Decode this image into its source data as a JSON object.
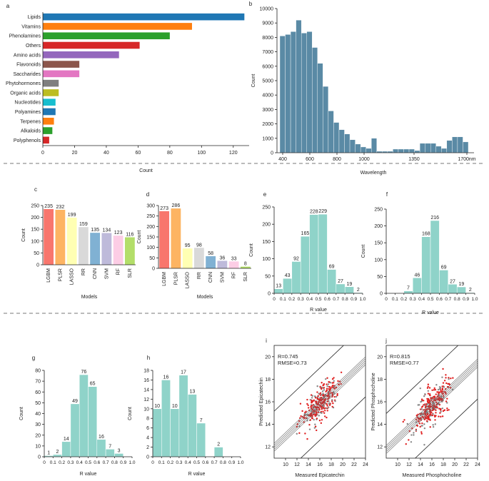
{
  "colors": {
    "hist": "#5a8aa5",
    "teal": "#8fd3c9",
    "red": "#e02020",
    "gray": "#888888",
    "axis": "#222222",
    "dash": "#777777"
  },
  "chart_data": [
    {
      "panel": "a",
      "type": "bar",
      "orientation": "horizontal",
      "categories": [
        "Lipids",
        "Vitamins",
        "Phenolamines",
        "Others",
        "Amino acids",
        "Flavonoids",
        "Saccharides",
        "Phytohormones",
        "Organic acids",
        "Nucleotides",
        "Polyamines",
        "Terpenes",
        "Alkaloids",
        "Polyphenols"
      ],
      "values": [
        127,
        94,
        80,
        61,
        48,
        23,
        23,
        10,
        10,
        8,
        8,
        7,
        6,
        4
      ],
      "colors": [
        "#1f77b4",
        "#ff7f0e",
        "#2ca02c",
        "#d62728",
        "#9467bd",
        "#8c564b",
        "#e377c2",
        "#7f7f7f",
        "#bcbd22",
        "#17becf",
        "#1f77b4",
        "#ff7f0e",
        "#2ca02c",
        "#d62728"
      ],
      "xlabel": "Count",
      "ylabel": "",
      "xlim": [
        0,
        130
      ],
      "xticks": [
        0,
        20,
        40,
        60,
        80,
        100,
        120
      ]
    },
    {
      "panel": "b",
      "type": "bar",
      "subtype": "histogram",
      "values": [
        8100,
        8200,
        8400,
        9200,
        8300,
        8400,
        7300,
        6200,
        4600,
        2900,
        2100,
        1600,
        1300,
        900,
        600,
        400,
        300,
        1000,
        100,
        100,
        100,
        250,
        250,
        250,
        250,
        150,
        650,
        650,
        650,
        450,
        300,
        850,
        1100,
        1100,
        750
      ],
      "xlabel": "Wavelength",
      "ylabel": "Count",
      "ylim": [
        0,
        10000
      ],
      "yticks": [
        0,
        1000,
        2000,
        3000,
        4000,
        5000,
        6000,
        7000,
        8000,
        9000,
        10000
      ],
      "xtick_labels": [
        "400",
        "600",
        "800",
        "1000",
        "1350",
        "1700nm"
      ]
    },
    {
      "panel": "c",
      "type": "bar",
      "categories": [
        "LGBM",
        "PLSR",
        "LASSO",
        "RR",
        "CNN",
        "SVM",
        "RF",
        "SLR"
      ],
      "values": [
        235,
        232,
        199,
        159,
        135,
        134,
        123,
        116
      ],
      "colors": [
        "#f8766d",
        "#fdb462",
        "#ffffb3",
        "#d9d9d9",
        "#80b1d3",
        "#bebada",
        "#fccde5",
        "#b3de69"
      ],
      "xlabel": "Models",
      "ylabel": "Count",
      "ylim": [
        0,
        250
      ],
      "yticks": [
        0,
        50,
        100,
        150,
        200,
        250
      ]
    },
    {
      "panel": "d",
      "type": "bar",
      "categories": [
        "LGBM",
        "PLSR",
        "LASSO",
        "RR",
        "CNN",
        "SVM",
        "RF",
        "SLR"
      ],
      "values": [
        273,
        286,
        95,
        98,
        58,
        36,
        33,
        8
      ],
      "colors": [
        "#f8766d",
        "#fdb462",
        "#ffffb3",
        "#d9d9d9",
        "#80b1d3",
        "#bebada",
        "#fccde5",
        "#b3de69"
      ],
      "xlabel": "Models",
      "ylabel": "Count",
      "ylim": [
        0,
        300
      ],
      "yticks": [
        0,
        50,
        100,
        150,
        200,
        250,
        300
      ]
    },
    {
      "panel": "e",
      "type": "bar",
      "subtype": "histogram",
      "values": [
        13,
        43,
        92,
        165,
        228,
        229,
        69,
        27,
        19,
        2
      ],
      "xlabel": "R value",
      "ylabel": "Count",
      "ylim": [
        0,
        250
      ],
      "yticks": [
        0,
        50,
        100,
        150,
        200,
        250
      ],
      "xtick_labels": [
        "0",
        "0.1",
        "0.2",
        "0.3",
        "0.4",
        "0.5",
        "0.6",
        "0.7",
        "0.8",
        "0.9",
        "1.0"
      ]
    },
    {
      "panel": "f",
      "type": "bar",
      "subtype": "histogram",
      "values": [
        0,
        0,
        7,
        46,
        168,
        216,
        69,
        27,
        19,
        2
      ],
      "data_labels": [
        "",
        "",
        "7",
        "46",
        "168",
        "216",
        "69",
        "27",
        "19",
        "2"
      ],
      "xlabel": "R value",
      "ylabel": "Count",
      "ylim": [
        0,
        250
      ],
      "yticks": [
        0,
        50,
        100,
        150,
        200,
        250
      ],
      "xtick_labels": [
        "0",
        "0.1",
        "0.2",
        "0.3",
        "0.4",
        "0.5",
        "0.6",
        "0.7",
        "0.8",
        "0.9",
        "1.0"
      ]
    },
    {
      "panel": "g",
      "type": "bar",
      "subtype": "histogram",
      "values": [
        1,
        2,
        14,
        49,
        76,
        65,
        16,
        7,
        3,
        0
      ],
      "data_labels": [
        "1",
        "2",
        "14",
        "49",
        "76",
        "65",
        "16",
        "7",
        "3",
        ""
      ],
      "xlabel": "R value",
      "ylabel": "Count",
      "ylim": [
        0,
        80
      ],
      "yticks": [
        0,
        10,
        20,
        30,
        40,
        50,
        60,
        70,
        80
      ],
      "xtick_labels": [
        "0",
        "0.1",
        "0.2",
        "0.3",
        "0.4",
        "0.5",
        "0.6",
        "0.7",
        "0.8",
        "0.9",
        "1.0"
      ]
    },
    {
      "panel": "h",
      "type": "bar",
      "subtype": "histogram",
      "values": [
        10,
        16,
        10,
        17,
        13,
        7,
        0,
        2
      ],
      "data_labels": [
        "10",
        "16",
        "10",
        "17",
        "13",
        "7",
        "",
        "2"
      ],
      "xlabel": "R value",
      "ylabel": "Count",
      "ylim": [
        0,
        18
      ],
      "yticks": [
        0,
        2,
        4,
        6,
        8,
        10,
        12,
        14,
        16,
        18
      ],
      "xtick_labels": [
        "0",
        "0.1",
        "0.2",
        "0.3",
        "0.4",
        "0.5",
        "0.6",
        "0.7",
        "0.8",
        "0.9",
        "1.0"
      ]
    },
    {
      "panel": "i",
      "type": "scatter",
      "annotation": [
        "R=0.745",
        "RMSE=0.73"
      ],
      "xlabel": "Measured Epicatechin",
      "ylabel": "Predicted Epicatechin",
      "xlim": [
        8,
        24
      ],
      "ylim": [
        11,
        21
      ],
      "xticks": [
        10,
        12,
        14,
        16,
        18,
        20,
        22,
        24
      ],
      "yticks": [
        12,
        14,
        16,
        18,
        20
      ],
      "center": [
        16,
        15.8
      ],
      "spread": [
        1.6,
        1.0
      ]
    },
    {
      "panel": "j",
      "type": "scatter",
      "annotation": [
        "R=0.815",
        "RMSE=0.77"
      ],
      "xlabel": "Measured Phosphocholine",
      "ylabel": "Predicted Phosphocholine",
      "xlim": [
        8,
        24
      ],
      "ylim": [
        11,
        21
      ],
      "xticks": [
        10,
        12,
        14,
        16,
        18,
        20,
        22,
        24
      ],
      "yticks": [
        12,
        14,
        16,
        18,
        20
      ],
      "center": [
        16,
        15.6
      ],
      "spread": [
        1.6,
        1.0
      ]
    }
  ]
}
